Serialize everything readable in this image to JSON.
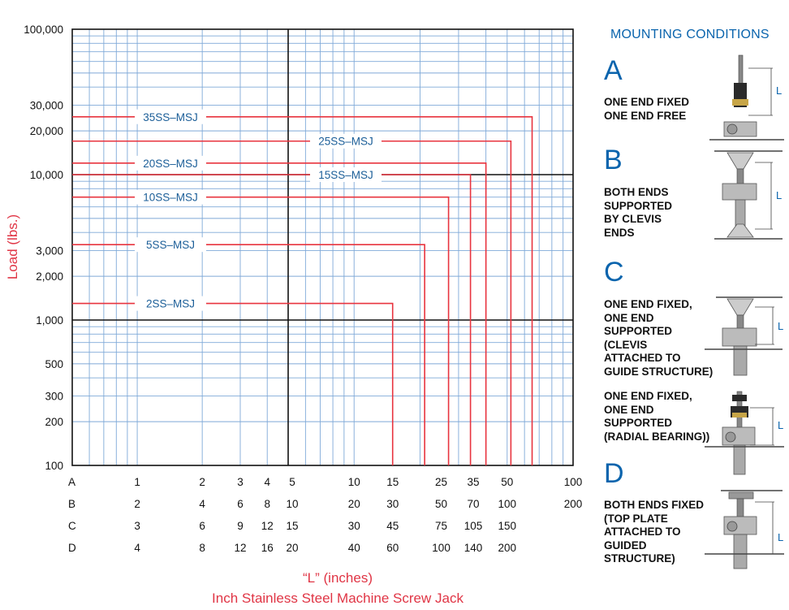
{
  "chart_data": {
    "type": "line",
    "ylabel": "Load (lbs.)",
    "xlabel": "“L” (inches)",
    "subtitle": "Inch Stainless Steel Machine Screw Jack",
    "yscale": "log",
    "ylim": [
      100,
      100000
    ],
    "y_ticks": [
      "100,000",
      "30,000",
      "20,000",
      "10,000",
      "3,000",
      "2,000",
      "1,000",
      "500",
      "300",
      "200",
      "100"
    ],
    "y_tick_values": [
      100000,
      30000,
      20000,
      10000,
      3000,
      2000,
      1000,
      500,
      300,
      200,
      100
    ],
    "x_rows": [
      {
        "label": "A",
        "ticks": [
          "1",
          "2",
          "3",
          "4",
          "5",
          "10",
          "15",
          "25",
          "35",
          "50",
          "100"
        ]
      },
      {
        "label": "B",
        "ticks": [
          "2",
          "4",
          "6",
          "8",
          "10",
          "20",
          "30",
          "50",
          "70",
          "100",
          "200"
        ]
      },
      {
        "label": "C",
        "ticks": [
          "3",
          "6",
          "9",
          "12",
          "15",
          "30",
          "45",
          "75",
          "105",
          "150"
        ]
      },
      {
        "label": "D",
        "ticks": [
          "4",
          "8",
          "12",
          "16",
          "20",
          "40",
          "60",
          "100",
          "140",
          "200"
        ]
      }
    ],
    "x_tick_values_A": [
      1,
      2,
      3,
      4,
      5,
      10,
      15,
      25,
      35,
      50,
      100
    ],
    "x_range_A": [
      0.5,
      100
    ],
    "series": [
      {
        "name": "35SS–MSJ",
        "load": 25000,
        "max_L_A": 65
      },
      {
        "name": "25SS–MSJ",
        "load": 17000,
        "max_L_A": 52
      },
      {
        "name": "20SS–MSJ",
        "load": 12000,
        "max_L_A": 40
      },
      {
        "name": "15SS–MSJ",
        "load": 10000,
        "max_L_A": 34
      },
      {
        "name": "10SS–MSJ",
        "load": 7000,
        "max_L_A": 27
      },
      {
        "name": "5SS–MSJ",
        "load": 3300,
        "max_L_A": 21
      },
      {
        "name": "2SS–MSJ",
        "load": 1300,
        "max_L_A": 15
      }
    ],
    "line_color": "#e8343f",
    "grid": true,
    "grid_color": "#7fa9d8"
  },
  "panel": {
    "title": "MOUNTING CONDITIONS",
    "conditions": [
      {
        "letter": "A",
        "text": "ONE END FIXED\nONE END FREE"
      },
      {
        "letter": "B",
        "text": "BOTH ENDS\nSUPPORTED\nBY CLEVIS\nENDS"
      },
      {
        "letter": "C",
        "text": "ONE END FIXED,\nONE END\nSUPPORTED\n(CLEVIS\nATTACHED TO\nGUIDE STRUCTURE)"
      },
      {
        "letter": "",
        "text": "ONE END FIXED,\nONE END\nSUPPORTED\n(RADIAL BEARING))"
      },
      {
        "letter": "D",
        "text": "BOTH ENDS FIXED\n(TOP PLATE\nATTACHED TO\nGUIDED\nSTRUCTURE)"
      }
    ],
    "dim_label": "L"
  }
}
